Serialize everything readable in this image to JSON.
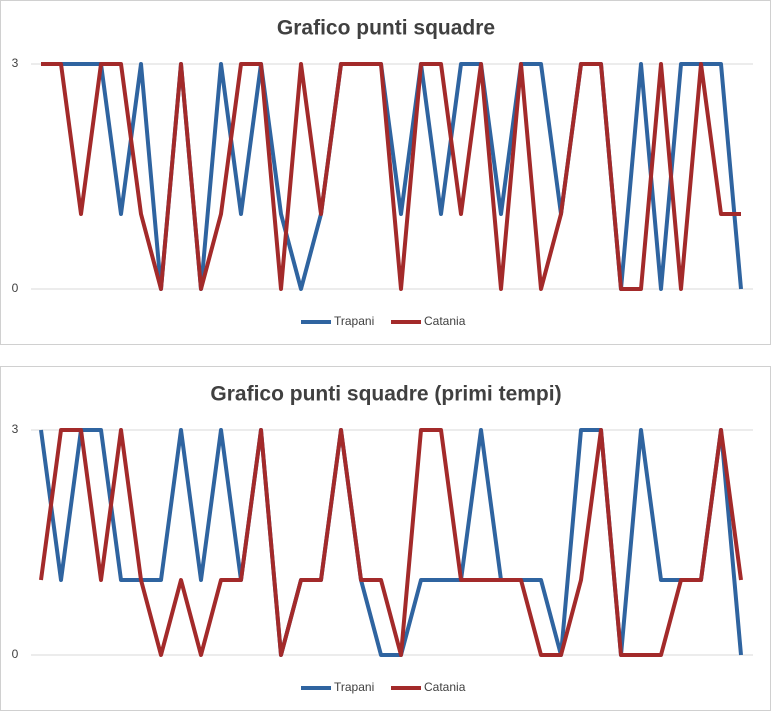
{
  "chart_data": [
    {
      "type": "line",
      "title": "Grafico punti squadre",
      "categories": [
        null,
        null,
        null,
        null,
        null,
        null,
        null,
        null,
        null,
        null,
        null,
        null,
        null,
        null,
        null,
        null,
        null,
        null,
        null,
        null,
        null,
        null,
        null,
        null,
        null,
        null,
        null,
        null,
        null,
        null,
        null,
        null,
        null,
        null,
        null,
        null
      ],
      "series": [
        {
          "name": "Trapani",
          "color": "#2f64a0",
          "values": [
            3,
            3,
            3,
            3,
            1,
            3,
            0,
            3,
            0,
            3,
            1,
            3,
            1,
            0,
            1,
            3,
            3,
            3,
            1,
            3,
            1,
            3,
            3,
            1,
            3,
            3,
            1,
            3,
            3,
            0,
            3,
            0,
            3,
            3,
            3,
            0
          ]
        },
        {
          "name": "Catania",
          "color": "#a32a2a",
          "values": [
            3,
            3,
            1,
            3,
            3,
            1,
            0,
            3,
            0,
            1,
            3,
            3,
            0,
            3,
            1,
            3,
            3,
            3,
            0,
            3,
            3,
            1,
            3,
            0,
            3,
            0,
            1,
            3,
            3,
            0,
            0,
            3,
            0,
            3,
            1,
            1
          ]
        }
      ],
      "ylim": [
        0,
        3
      ],
      "yticks": [
        0,
        3
      ],
      "grid": true,
      "legend": "bottom"
    },
    {
      "type": "line",
      "title": "Grafico punti squadre (primi tempi)",
      "categories": [
        null,
        null,
        null,
        null,
        null,
        null,
        null,
        null,
        null,
        null,
        null,
        null,
        null,
        null,
        null,
        null,
        null,
        null,
        null,
        null,
        null,
        null,
        null,
        null,
        null,
        null,
        null,
        null,
        null,
        null,
        null,
        null,
        null,
        null,
        null,
        null
      ],
      "series": [
        {
          "name": "Trapani",
          "color": "#2f64a0",
          "values": [
            3,
            1,
            3,
            3,
            1,
            1,
            1,
            3,
            1,
            3,
            1,
            3,
            0,
            1,
            1,
            3,
            1,
            0,
            0,
            1,
            1,
            1,
            3,
            1,
            1,
            1,
            0,
            3,
            3,
            0,
            3,
            1,
            1,
            1,
            3,
            0
          ]
        },
        {
          "name": "Catania",
          "color": "#a32a2a",
          "values": [
            1,
            3,
            3,
            1,
            3,
            1,
            0,
            1,
            0,
            1,
            1,
            3,
            0,
            1,
            1,
            3,
            1,
            1,
            0,
            3,
            3,
            1,
            1,
            1,
            1,
            0,
            0,
            1,
            3,
            0,
            0,
            0,
            1,
            1,
            3,
            1
          ]
        }
      ],
      "ylim": [
        0,
        3
      ],
      "yticks": [
        0,
        3
      ],
      "grid": true,
      "legend": "bottom"
    }
  ]
}
